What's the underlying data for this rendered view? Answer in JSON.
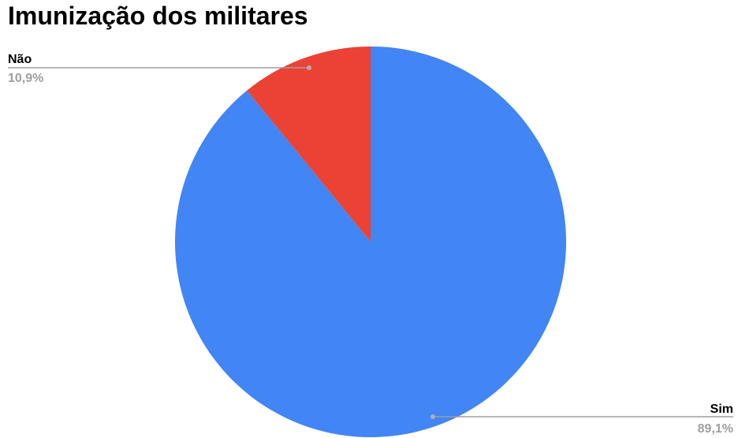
{
  "chart_data": {
    "type": "pie",
    "title": "Imunização dos militares",
    "categories": [
      "Sim",
      "Não"
    ],
    "values": [
      89.1,
      10.9
    ],
    "value_labels": [
      "89,1%",
      "10,9%"
    ],
    "colors": [
      "#4285f4",
      "#ea4335"
    ],
    "start": "12 o'clock",
    "direction": "clockwise",
    "legend": "none",
    "label_placement": [
      "bottom-right",
      "top-left"
    ]
  }
}
